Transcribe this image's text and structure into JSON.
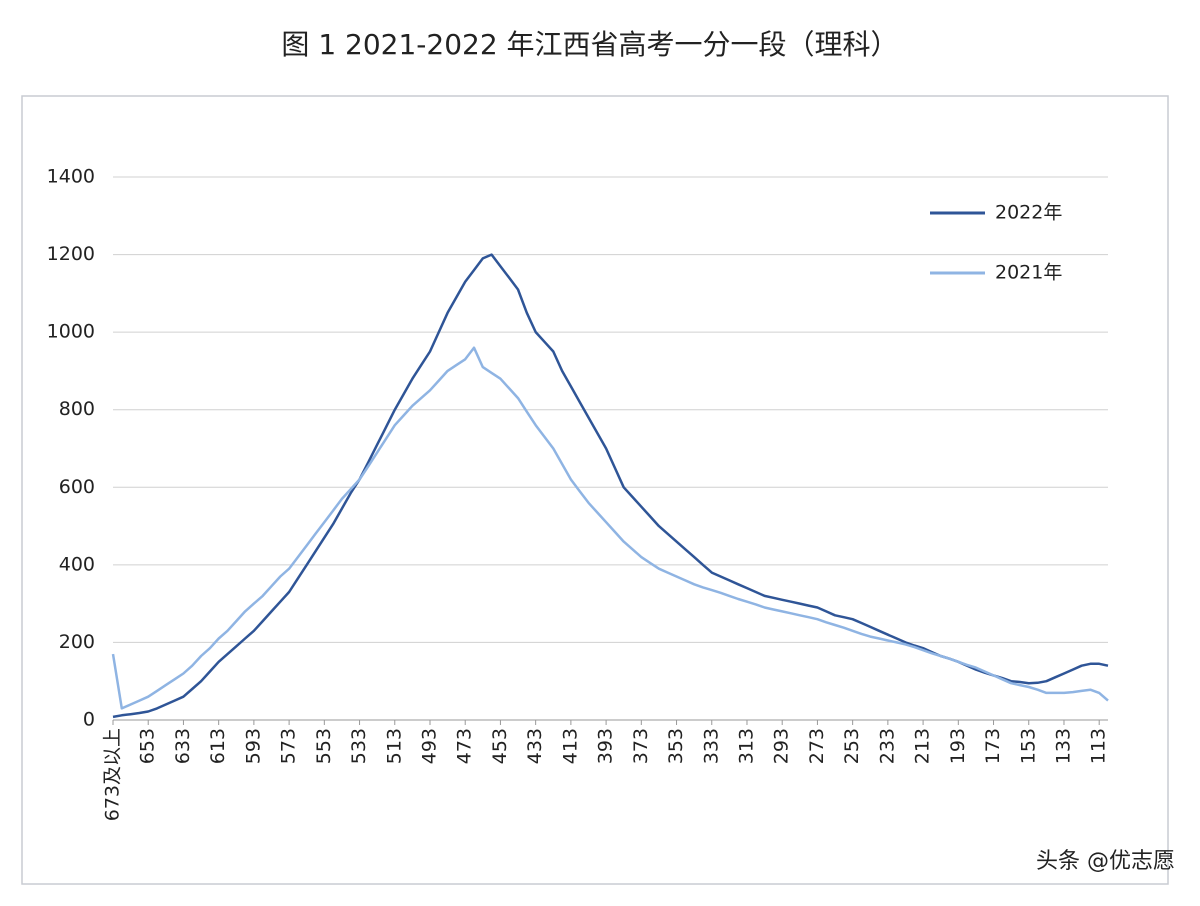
{
  "chart_data": {
    "type": "line",
    "title": "图 1 2021-2022 年江西省高考一分一段（理科）",
    "watermark": "头条 @优志愿",
    "x": [
      673,
      668,
      663,
      658,
      653,
      648,
      643,
      638,
      633,
      628,
      623,
      618,
      613,
      608,
      603,
      598,
      593,
      588,
      583,
      578,
      573,
      568,
      563,
      558,
      553,
      548,
      543,
      538,
      533,
      528,
      523,
      518,
      513,
      508,
      503,
      498,
      493,
      488,
      483,
      478,
      473,
      468,
      463,
      458,
      453,
      448,
      443,
      438,
      433,
      428,
      423,
      418,
      413,
      408,
      403,
      398,
      393,
      388,
      383,
      378,
      373,
      368,
      363,
      358,
      353,
      348,
      343,
      338,
      333,
      328,
      323,
      318,
      313,
      308,
      303,
      298,
      293,
      288,
      283,
      278,
      273,
      268,
      263,
      258,
      253,
      248,
      243,
      238,
      233,
      228,
      223,
      218,
      213,
      208,
      203,
      198,
      193,
      188,
      183,
      178,
      173,
      168,
      163,
      158,
      153,
      148,
      143,
      138,
      133,
      128,
      123,
      118,
      113,
      108
    ],
    "series": [
      {
        "name": "2022年",
        "color": "#2f5597",
        "values": [
          8,
          12,
          15,
          18,
          22,
          30,
          40,
          50,
          60,
          80,
          100,
          125,
          150,
          170,
          190,
          210,
          230,
          255,
          280,
          305,
          330,
          365,
          400,
          435,
          470,
          505,
          545,
          585,
          620,
          665,
          710,
          755,
          800,
          840,
          880,
          915,
          950,
          1000,
          1050,
          1090,
          1130,
          1160,
          1190,
          1200,
          1170,
          1140,
          1110,
          1050,
          1000,
          975,
          950,
          900,
          860,
          820,
          780,
          740,
          700,
          650,
          600,
          575,
          550,
          525,
          500,
          480,
          460,
          440,
          420,
          400,
          380,
          370,
          360,
          350,
          340,
          330,
          320,
          315,
          310,
          305,
          300,
          295,
          290,
          280,
          270,
          265,
          260,
          250,
          240,
          230,
          220,
          210,
          200,
          192,
          185,
          175,
          165,
          158,
          150,
          140,
          130,
          122,
          115,
          108,
          100,
          98,
          95,
          96,
          100,
          110,
          120,
          130,
          140,
          145,
          145,
          140
        ]
      },
      {
        "name": "2021年",
        "color": "#8fb4e3",
        "values": [
          170,
          30,
          40,
          50,
          60,
          75,
          90,
          105,
          120,
          140,
          165,
          185,
          210,
          230,
          255,
          280,
          300,
          320,
          345,
          370,
          390,
          420,
          450,
          480,
          510,
          540,
          570,
          595,
          620,
          655,
          690,
          725,
          760,
          785,
          810,
          830,
          850,
          875,
          900,
          915,
          930,
          960,
          910,
          895,
          880,
          855,
          830,
          795,
          760,
          730,
          700,
          660,
          620,
          590,
          560,
          535,
          510,
          485,
          460,
          440,
          420,
          405,
          390,
          380,
          370,
          360,
          350,
          342,
          335,
          328,
          320,
          312,
          305,
          298,
          290,
          285,
          280,
          275,
          270,
          265,
          260,
          252,
          245,
          238,
          230,
          222,
          215,
          210,
          205,
          200,
          195,
          188,
          180,
          172,
          165,
          158,
          150,
          142,
          135,
          125,
          115,
          105,
          95,
          90,
          85,
          78,
          70,
          70,
          70,
          72,
          75,
          78,
          70,
          50
        ]
      }
    ],
    "xlim": [
      673,
      108
    ],
    "xticks": [
      {
        "value": 673,
        "label": "673及以上"
      },
      653,
      633,
      613,
      593,
      573,
      553,
      533,
      513,
      493,
      473,
      453,
      433,
      413,
      393,
      373,
      353,
      333,
      313,
      293,
      273,
      253,
      233,
      213,
      193,
      173,
      153,
      133,
      113
    ],
    "ylim": [
      0,
      1400
    ],
    "yticks": [
      0,
      200,
      400,
      600,
      800,
      1000,
      1200,
      1400
    ],
    "grid": true,
    "legend": "top-right"
  }
}
